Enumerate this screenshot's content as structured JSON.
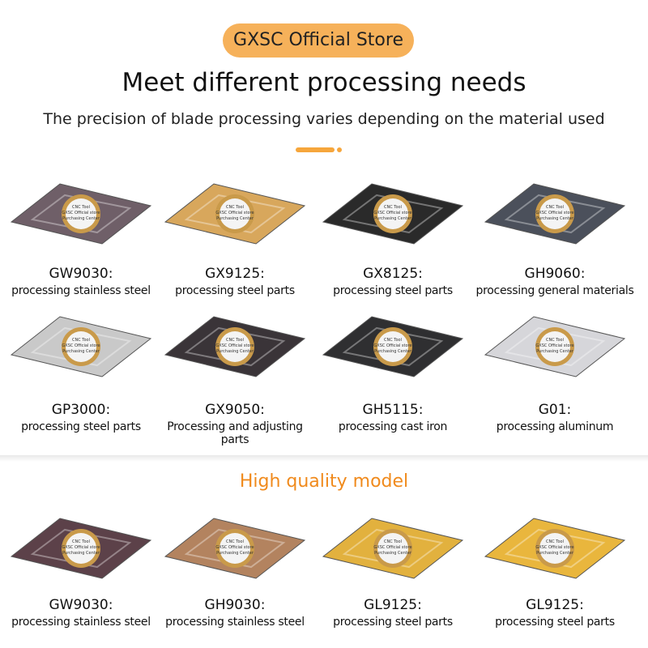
{
  "header": {
    "badge": "GXSC Official Store",
    "title": "Meet different processing needs",
    "subtitle": "The precision of blade processing varies depending on the material used"
  },
  "stamp": [
    "CNC Tool",
    "GXSC Official store",
    "Purchasing Center"
  ],
  "products": [
    {
      "model": "GW9030:",
      "desc": "processing stainless steel"
    },
    {
      "model": "GX9125:",
      "desc": "processing steel parts"
    },
    {
      "model": "GX8125:",
      "desc": "processing steel parts"
    },
    {
      "model": "GH9060:",
      "desc": "processing general materials"
    },
    {
      "model": "GP3000:",
      "desc": "processing steel parts"
    },
    {
      "model": "GX9050:",
      "desc": "Processing and adjusting parts"
    },
    {
      "model": "GH5115:",
      "desc": "processing cast iron"
    },
    {
      "model": "G01:",
      "desc": "processing aluminum"
    }
  ],
  "section": {
    "title": "High quality model"
  },
  "featured": [
    {
      "model": "GW9030:",
      "desc": "processing stainless steel"
    },
    {
      "model": "GH9030:",
      "desc": "processing stainless steel"
    },
    {
      "model": "GL9125:",
      "desc": "processing steel parts"
    },
    {
      "model": "GL9125:",
      "desc": "processing steel parts"
    }
  ]
}
